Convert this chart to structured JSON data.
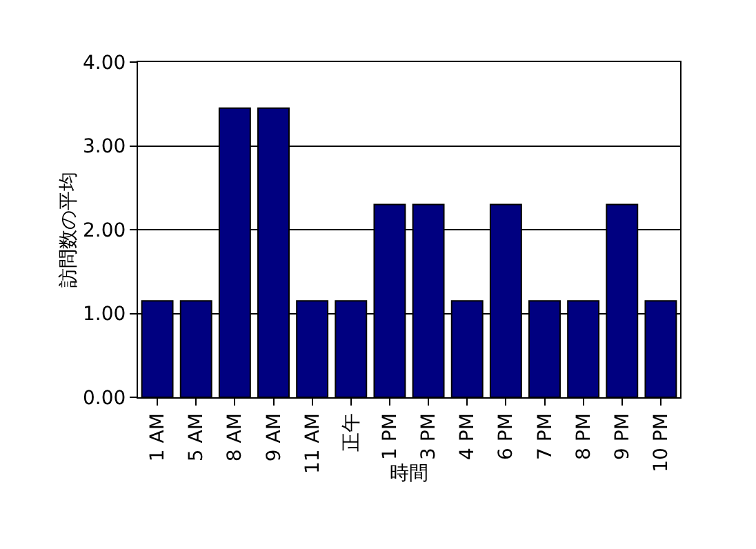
{
  "chart_data": {
    "type": "bar",
    "xlabel": "時間",
    "ylabel": "訪問数の平均",
    "categories": [
      "1 AM",
      "5 AM",
      "8 AM",
      "9 AM",
      "11 AM",
      "正午",
      "1 PM",
      "3 PM",
      "4 PM",
      "6 PM",
      "7 PM",
      "8 PM",
      "9 PM",
      "10 PM"
    ],
    "values": [
      1.15,
      1.15,
      3.45,
      3.45,
      1.15,
      1.15,
      2.3,
      2.3,
      1.15,
      2.3,
      1.15,
      1.15,
      2.3,
      1.15
    ],
    "color": "#000080",
    "ylim": [
      0,
      4
    ],
    "yticks": [
      {
        "value": 0,
        "label": "0.00"
      },
      {
        "value": 1,
        "label": "1.00"
      },
      {
        "value": 2,
        "label": "2.00"
      },
      {
        "value": 3,
        "label": "3.00"
      },
      {
        "value": 4,
        "label": "4.00"
      }
    ],
    "grid": "y",
    "legend": false
  }
}
